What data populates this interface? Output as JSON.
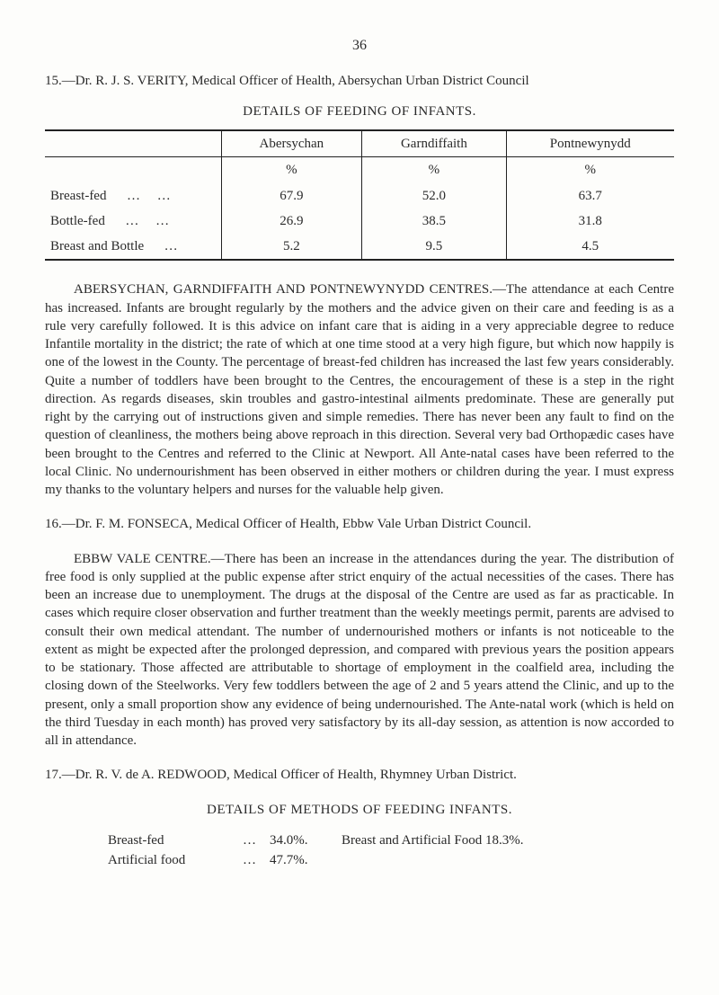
{
  "page_number": "36",
  "entry15": {
    "heading_prefix": "15.—Dr. R. J. S. VERITY, Medical Officer of Health, Abersychan Urban District Council",
    "table_title": "DETAILS OF FEEDING OF INFANTS.",
    "table": {
      "columns": [
        "",
        "Abersychan",
        "Garndiffaith",
        "Pontnewynydd"
      ],
      "unit_row": [
        "",
        "%",
        "%",
        "%"
      ],
      "rows": [
        [
          "Breast-fed",
          "67.9",
          "52.0",
          "63.7"
        ],
        [
          "Bottle-fed",
          "26.9",
          "38.5",
          "31.8"
        ],
        [
          "Breast and Bottle",
          "5.2",
          "9.5",
          "4.5"
        ]
      ]
    },
    "paragraph": "ABERSYCHAN, GARNDIFFAITH AND PONTNEWYNYDD CENTRES.—The attendance at each Centre has increased. Infants are brought regularly by the mothers and the advice given on their care and feeding is as a rule very carefully followed. It is this advice on infant care that is aiding in a very appreciable degree to reduce Infantile mor­tality in the district; the rate of which at one time stood at a very high figure, but which now happily is one of the lowest in the County. The percentage of breast-fed children has increased the last few years considerably. Quite a number of toddlers have been brought to the Centres, the encouragement of these is a step in the right direction. As regards diseases, skin troubles and gastro-intestinal ailments predominate. These are generally put right by the carrying out of instructions given and simple remedies. There has never been any fault to find on the question of cleanliness, the mothers being above reproach in this direction. Several very bad Orthopædic cases have been brought to the Centres and re­ferred to the Clinic at Newport. All Ante-natal cases have been referred to the local Clinic. No undernourishment has been observed in either mothers or children during the year. I must express my thanks to the voluntary helpers and nurses for the valuable help given."
  },
  "entry16": {
    "heading": "16.—Dr. F. M. FONSECA, Medical Officer of Health, Ebbw Vale Urban District Council.",
    "paragraph": "EBBW VALE CENTRE.—There has been an increase in the attendances during the year. The distribution of free food is only supplied at the public expense after strict en­quiry of the actual necessities of the cases. There has been an increase due to unem­ployment. The drugs at the disposal of the Centre are used as far as practicable. In cases which require closer observation and further treatment than the weekly meetings per­mit, parents are advised to consult their own medical attendant. The number of under­nourished mothers or infants is not noticeable to the extent as might be expected after the prolonged depression, and compared with previous years the position appears to be stationary. Those affected are attributable to shortage of employment in the coalfield area, including the closing down of the Steelworks. Very few toddlers between the age of 2 and 5 years attend the Clinic, and up to the present, only a small proportion show any evidence of being undernourished. The Ante-natal work (which is held on the third Tuesday in each month) has proved very satisfactory by its all-day session, as attention is now accorded to all in attendance."
  },
  "entry17": {
    "heading": "17.—Dr. R. V. de A. REDWOOD, Medical Officer of Health, Rhymney Urban District.",
    "details_title": "DETAILS OF METHODS OF FEEDING INFANTS.",
    "lines": {
      "breast_label": "Breast-fed",
      "breast_pct": "34.0%.",
      "breast_rest": "Breast and Artificial Food  18.3%.",
      "artificial_label": "Artificial food",
      "artificial_pct": "47.7%."
    }
  },
  "ellipsis": "…"
}
